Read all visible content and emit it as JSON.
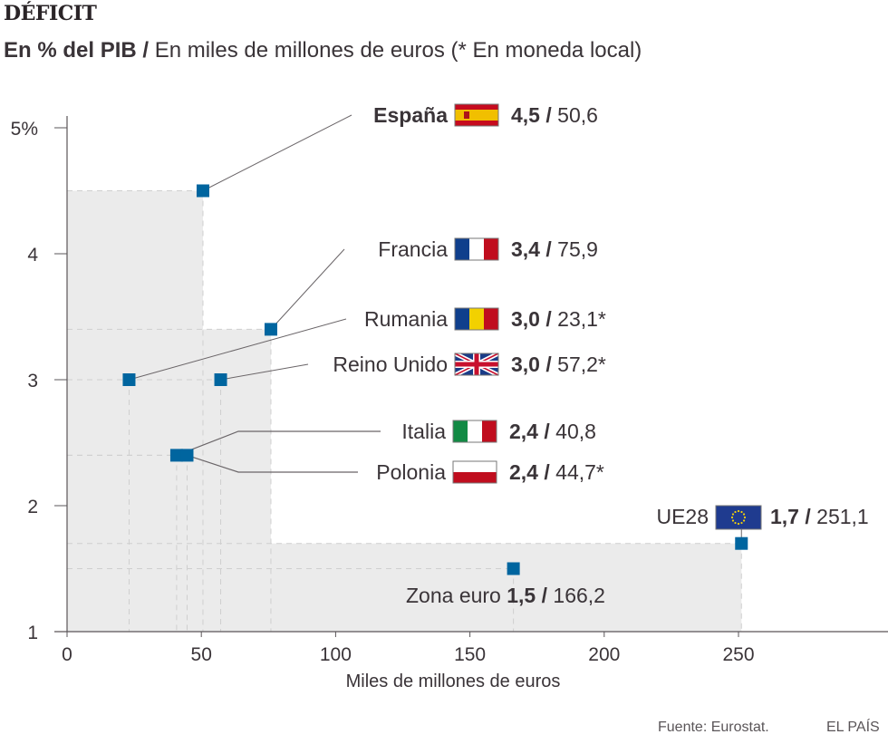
{
  "header": {
    "title": "DÉFICIT",
    "subtitle_bold": "En % del PIB /",
    "subtitle_regular": " En miles de millones de euros (* En moneda local)"
  },
  "footer": {
    "source": "Fuente: Eurostat.",
    "brand": "EL PAÍS"
  },
  "colors": {
    "marker": "#00659f",
    "shade": "#ebebeb",
    "axis": "#5a5558",
    "text": "#3a3438",
    "leader": "#6a6568"
  },
  "chart_data": {
    "type": "scatter",
    "title": "DÉFICIT",
    "subtitle": "En % del PIB / En miles de millones de euros (* En moneda local)",
    "xlabel": "Miles de millones de euros",
    "ylabel": "",
    "xlim": [
      0,
      300
    ],
    "ylim": [
      1,
      5
    ],
    "xticks": [
      0,
      50,
      100,
      150,
      200,
      250
    ],
    "xtick_labels": [
      "0",
      "50",
      "100",
      "150",
      "200",
      "250"
    ],
    "yticks": [
      1,
      2,
      3,
      4,
      5
    ],
    "ytick_labels": [
      "1",
      "2",
      "3",
      "4",
      "5%"
    ],
    "grid": false,
    "shaded_steps": [
      {
        "x_to": 50.6,
        "y": 4.5
      },
      {
        "x_to": 75.9,
        "y": 3.4
      },
      {
        "x_to": 251.1,
        "y": 1.7
      }
    ],
    "points": [
      {
        "name": "España",
        "pct": "4,5",
        "amount": "50,6",
        "y": 4.5,
        "x": 50.6,
        "flag": "spain-flag",
        "bold_name": true,
        "local_currency": false
      },
      {
        "name": "Francia",
        "pct": "3,4",
        "amount": "75,9",
        "y": 3.4,
        "x": 75.9,
        "flag": "france-flag",
        "bold_name": false,
        "local_currency": false
      },
      {
        "name": "Rumania",
        "pct": "3,0",
        "amount": "23,1*",
        "y": 3.0,
        "x": 23.1,
        "flag": "romania-flag",
        "bold_name": false,
        "local_currency": true
      },
      {
        "name": "Reino Unido",
        "pct": "3,0",
        "amount": "57,2*",
        "y": 3.0,
        "x": 57.2,
        "flag": "uk-flag",
        "bold_name": false,
        "local_currency": true
      },
      {
        "name": "Italia",
        "pct": "2,4",
        "amount": "40,8",
        "y": 2.4,
        "x": 40.8,
        "flag": "italy-flag",
        "bold_name": false,
        "local_currency": false
      },
      {
        "name": "Polonia",
        "pct": "2,4",
        "amount": "44,7*",
        "y": 2.4,
        "x": 44.7,
        "flag": "poland-flag",
        "bold_name": false,
        "local_currency": true
      },
      {
        "name": "UE28",
        "pct": "1,7",
        "amount": "251,1",
        "y": 1.7,
        "x": 251.1,
        "flag": "eu-flag",
        "bold_name": false,
        "local_currency": false
      },
      {
        "name": "Zona euro",
        "pct": "1,5",
        "amount": "166,2",
        "y": 1.5,
        "x": 166.2,
        "flag": null,
        "bold_name": false,
        "local_currency": false
      }
    ]
  }
}
